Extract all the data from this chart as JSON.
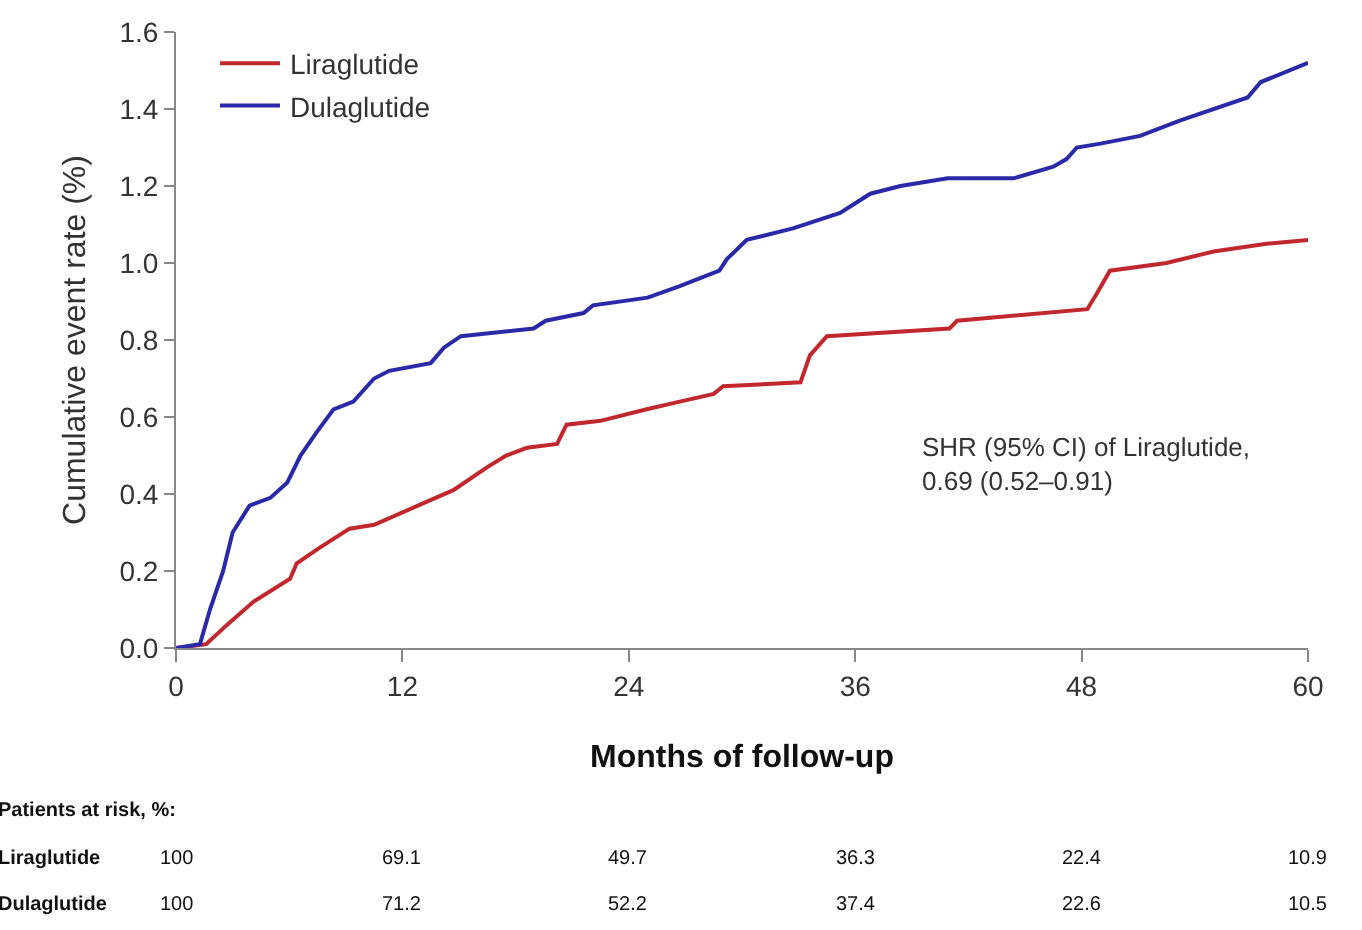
{
  "chart_data": {
    "type": "line",
    "xlabel": "Months of follow-up",
    "ylabel": "Cumulative event rate (%)",
    "xlim": [
      0,
      60
    ],
    "xticks": [
      0,
      12,
      24,
      36,
      48,
      60
    ],
    "ylim": [
      0,
      1.6
    ],
    "yticks": [
      "0.0",
      0.2,
      0.4,
      0.6,
      0.8,
      "1.0",
      1.2,
      1.4,
      1.6
    ],
    "legend": "top left",
    "grid": false,
    "marker": "none",
    "line_style": "solid",
    "series": [
      {
        "name": "Liraglutide",
        "color": "#c0282d",
        "x": [
          0,
          1.6,
          2.7,
          4.1,
          6.05,
          6.4,
          7.6,
          9.2,
          10.5,
          13.3,
          14.7,
          16.5,
          17.5,
          18.6,
          20.2,
          20.7,
          22.5,
          24.95,
          26.7,
          28.5,
          29.0,
          33.1,
          33.6,
          34.5,
          41.0,
          41.4,
          48.3,
          48.8,
          49.5,
          52.5,
          55.0,
          57.8,
          60
        ],
        "values": [
          0,
          0.01,
          0.06,
          0.12,
          0.18,
          0.22,
          0.26,
          0.31,
          0.32,
          0.38,
          0.41,
          0.47,
          0.5,
          0.52,
          0.53,
          0.58,
          0.59,
          0.62,
          0.64,
          0.66,
          0.68,
          0.69,
          0.76,
          0.81,
          0.83,
          0.85,
          0.88,
          0.92,
          0.98,
          1.0,
          1.03,
          1.05,
          1.06
        ]
      },
      {
        "name": "Dulaglutide",
        "color": "#2a2aa8",
        "x": [
          0,
          1.27,
          1.8,
          2.5,
          3.0,
          3.9,
          5.0,
          5.9,
          6.6,
          7.45,
          8.35,
          9.4,
          10.5,
          11.3,
          13.5,
          14.2,
          15.1,
          18.95,
          19.6,
          21.6,
          22.1,
          25.0,
          26.7,
          28.8,
          29.2,
          30.25,
          32.7,
          35.2,
          36.8,
          38.4,
          40.9,
          44.4,
          46.5,
          47.2,
          47.75,
          49.0,
          51.1,
          53.2,
          56.8,
          57.5,
          60
        ],
        "values": [
          0,
          0.01,
          0.1,
          0.2,
          0.3,
          0.37,
          0.39,
          0.43,
          0.5,
          0.56,
          0.62,
          0.64,
          0.7,
          0.72,
          0.74,
          0.78,
          0.81,
          0.83,
          0.85,
          0.87,
          0.89,
          0.91,
          0.94,
          0.98,
          1.01,
          1.06,
          1.09,
          1.13,
          1.18,
          1.2,
          1.22,
          1.22,
          1.25,
          1.27,
          1.3,
          1.31,
          1.33,
          1.37,
          1.43,
          1.47,
          1.52
        ]
      }
    ],
    "annotations": [
      "SHR (95% CI) of Liraglutide,\n0.69 (0.52–0.91)",
      "Patients at risk, %:",
      "Liraglutide",
      "100",
      "69.1",
      "49.7",
      "36.3",
      "22.4",
      "10.9",
      "Dulaglutide",
      "100",
      "71.2",
      "52.2",
      "37.4",
      "22.6",
      "10.5"
    ]
  }
}
